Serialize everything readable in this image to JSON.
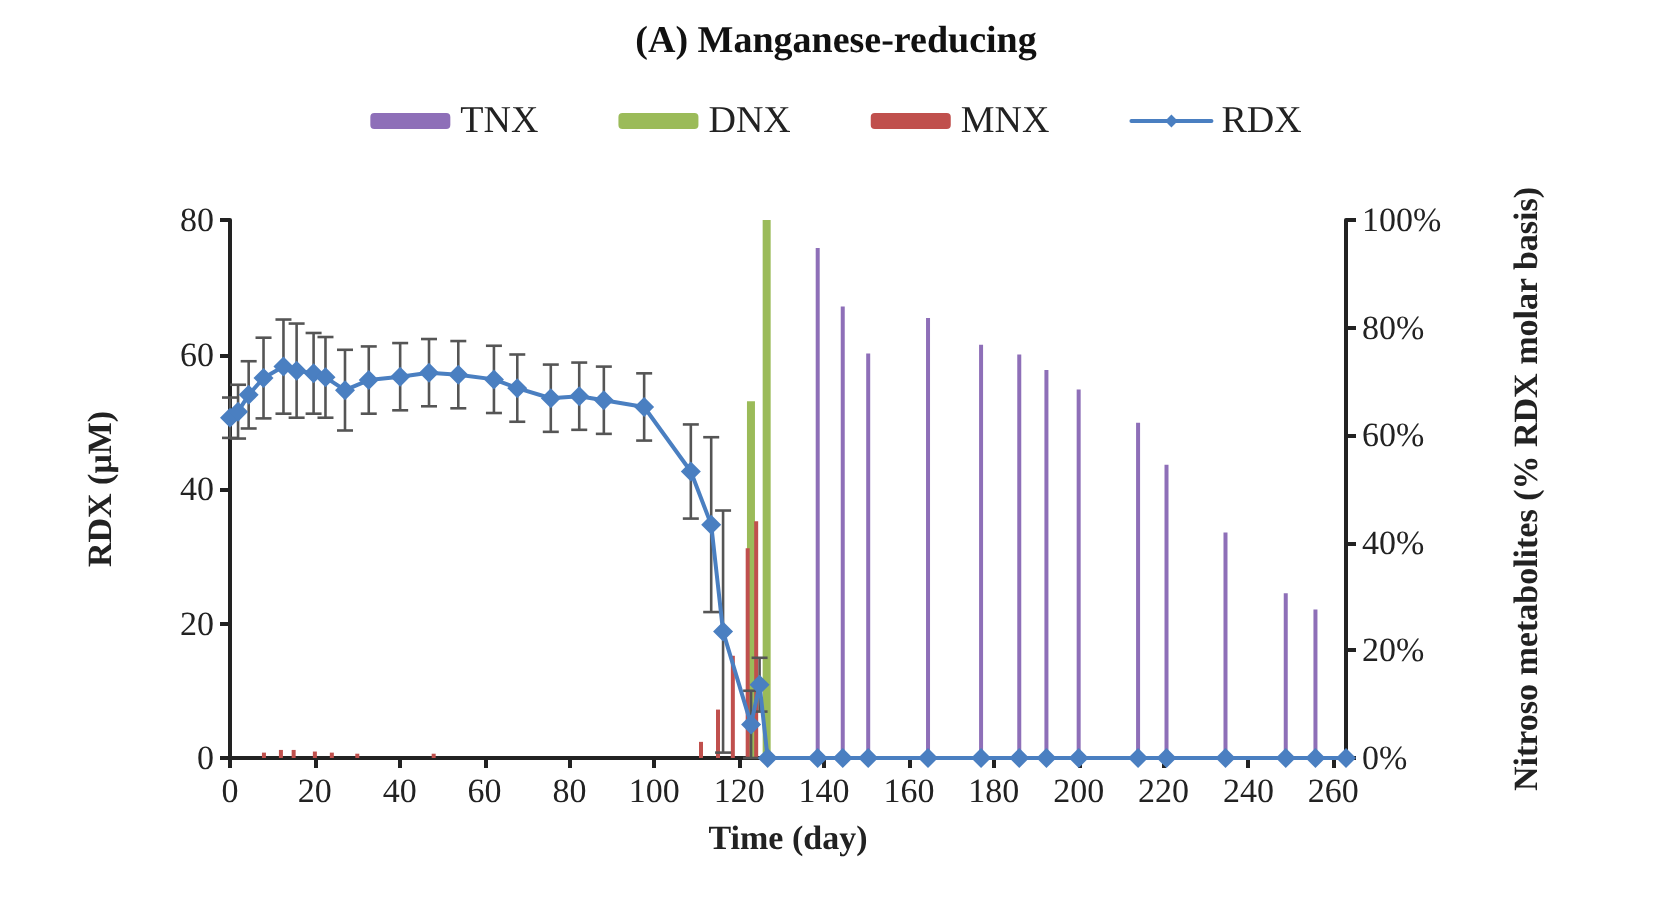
{
  "chart_data": {
    "type": "bar",
    "title": "(A) Manganese-reducing",
    "xlabel": "Time (day)",
    "ylabel": "RDX (μM)",
    "y2label": "Nitroso metabolites (% RDX molar basis)",
    "series": [
      {
        "name": "TNX",
        "axis": "y2",
        "color": "#8e6fb8",
        "x": [
          138.5,
          144.4,
          150.4,
          164.5,
          177,
          186,
          192.4,
          200,
          214,
          220.7,
          234.6,
          248.8,
          255.8
        ],
        "values": [
          94.8,
          83.9,
          75.2,
          81.8,
          76.8,
          75,
          72.1,
          68.5,
          62.3,
          54.5,
          41.9,
          30.6,
          27.6
        ]
      },
      {
        "name": "DNX",
        "axis": "y2",
        "color": "#9bbb59",
        "x": [
          122.3,
          126
        ],
        "values": [
          66.3,
          100
        ]
      },
      {
        "name": "MNX",
        "axis": "y2",
        "color": "#c0504d",
        "x": [
          8,
          12,
          15,
          20,
          24,
          30,
          48,
          111,
          115,
          118.5,
          122,
          124
        ],
        "values": [
          1,
          1.5,
          1.5,
          1.2,
          1,
          0.8,
          0.8,
          3,
          9,
          19,
          39,
          44
        ]
      },
      {
        "name": "RDX",
        "type": "line",
        "axis": "y",
        "color": "#4a7fc1",
        "marker": "diamond",
        "line_style": "solid",
        "x": [
          0,
          1.9,
          4.4,
          7.9,
          12.6,
          15.7,
          19.7,
          22.5,
          27.1,
          32.7,
          40.1,
          46.9,
          53.8,
          62.2,
          67.7,
          75.6,
          82.3,
          88.1,
          97.6,
          108.6,
          113.4,
          116.2,
          122.8,
          124.8,
          126.7,
          138.5,
          144.4,
          150.4,
          164.5,
          177,
          186,
          192.4,
          200,
          214,
          220.7,
          234.6,
          248.8,
          255.8,
          263
        ],
        "values": [
          50.6,
          51.5,
          54,
          56.5,
          58.2,
          57.6,
          57.2,
          56.6,
          54.7,
          56.2,
          56.7,
          57.3,
          57,
          56.3,
          55,
          53.5,
          53.8,
          53.2,
          52.2,
          42.6,
          34.7,
          18.8,
          5,
          10.9,
          0,
          0,
          0,
          0,
          0,
          0,
          0,
          0,
          0,
          0,
          0,
          0,
          0,
          0,
          0
        ],
        "errors": [
          3,
          4,
          5,
          6,
          7,
          7,
          6,
          6,
          6,
          5,
          5,
          5,
          5,
          5,
          5,
          5,
          5,
          5,
          5,
          7,
          13,
          18,
          5,
          4,
          null,
          null,
          null,
          null,
          null,
          null,
          null,
          null,
          null,
          null,
          null,
          null,
          null,
          null,
          null
        ]
      }
    ],
    "xlim": [
      0,
      263
    ],
    "xticks": [
      0,
      20,
      40,
      60,
      80,
      100,
      120,
      140,
      160,
      180,
      200,
      220,
      240,
      260
    ],
    "ylim": [
      0,
      80
    ],
    "yticks": [
      0,
      20,
      40,
      60,
      80
    ],
    "y2lim": [
      0,
      100
    ],
    "y2ticks": [
      {
        "value": 0,
        "label": "0%"
      },
      {
        "value": 20,
        "label": "20%"
      },
      {
        "value": 40,
        "label": "40%"
      },
      {
        "value": 60,
        "label": "60%"
      },
      {
        "value": 80,
        "label": "80%"
      },
      {
        "value": 100,
        "label": "100%"
      }
    ],
    "grid": false,
    "legend": "top"
  }
}
